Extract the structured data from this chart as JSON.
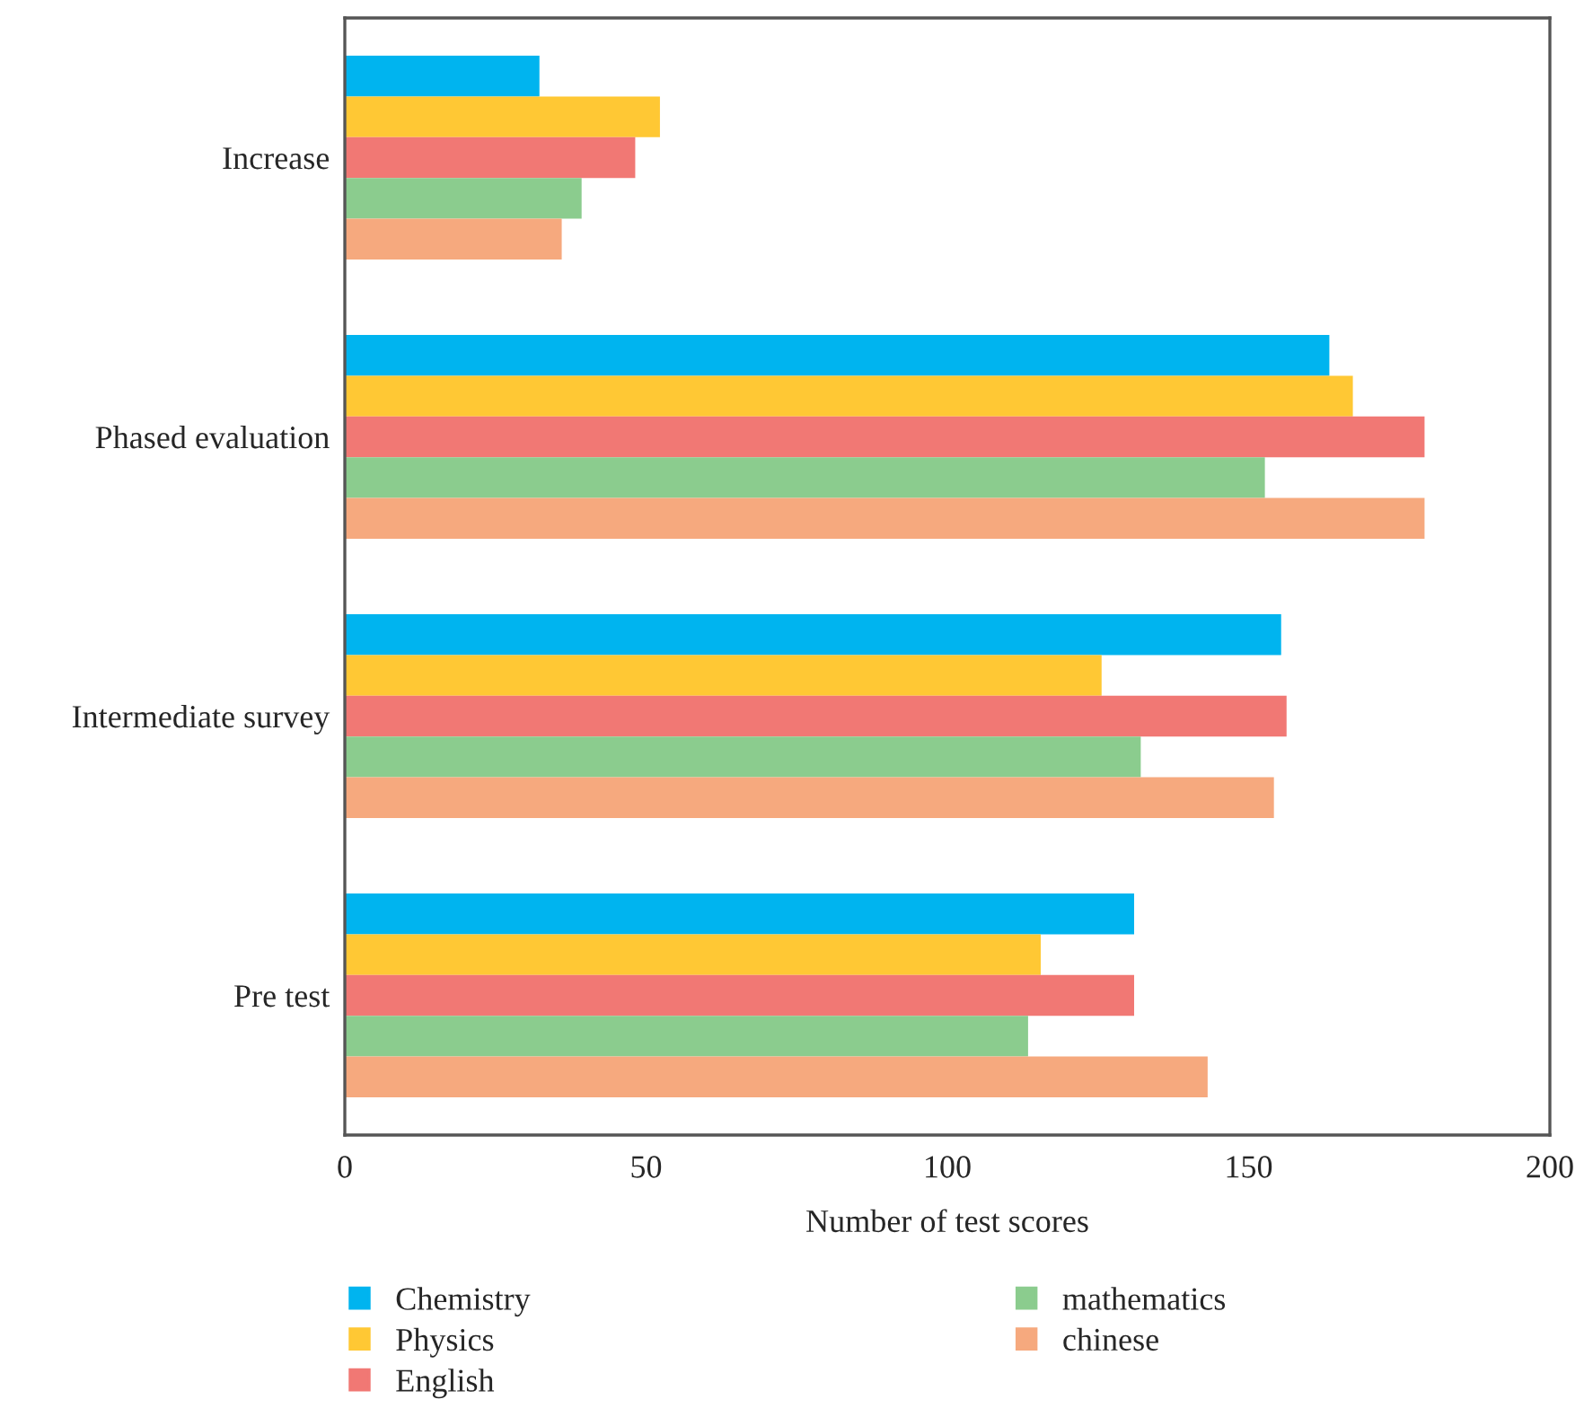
{
  "chart_data": {
    "type": "bar",
    "orientation": "horizontal",
    "xlabel": "Number of test scores",
    "categories": [
      "Increase",
      "Phased evaluation",
      "Intermediate survey",
      "Pre test"
    ],
    "series": [
      {
        "name": "Chemistry",
        "color": "#00b4ef",
        "values": [
          32.3,
          163.4,
          155.4,
          131
        ]
      },
      {
        "name": "Physics",
        "color": "#ffc834",
        "values": [
          52.3,
          167.3,
          125.6,
          115.5
        ]
      },
      {
        "name": "English",
        "color": "#f17874",
        "values": [
          48.2,
          179.2,
          156.3,
          131
        ]
      },
      {
        "name": "mathematics",
        "color": "#8bcc8e",
        "values": [
          39.3,
          152.7,
          132.1,
          113.4
        ]
      },
      {
        "name": "chinese",
        "color": "#f6a97e",
        "values": [
          36,
          179.2,
          154.2,
          143.2
        ]
      }
    ],
    "xlim": [
      0,
      200
    ],
    "xticks": [
      0,
      50,
      100,
      150,
      200
    ],
    "grid": false,
    "legend": "bottom"
  }
}
